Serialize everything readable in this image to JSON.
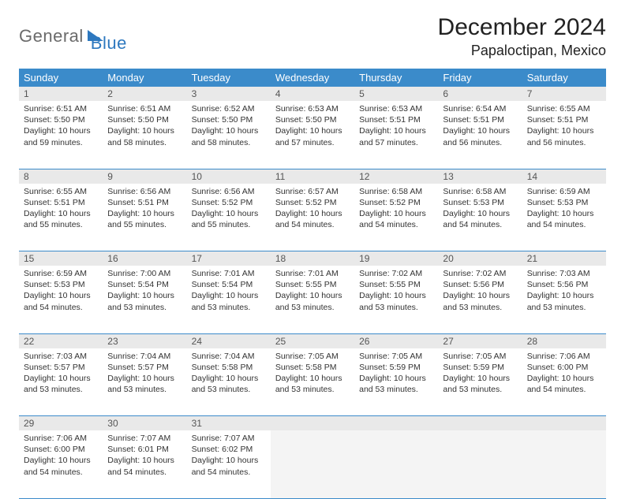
{
  "logo": {
    "part1": "General",
    "part2": "Blue"
  },
  "title": "December 2024",
  "location": "Papaloctipan, Mexico",
  "colors": {
    "header_bg": "#3b8bca",
    "header_fg": "#ffffff",
    "daynum_bg": "#e9e9e9",
    "border": "#3b8bca",
    "logo_gray": "#6b6b6b",
    "logo_blue": "#2d78bf"
  },
  "weekdays": [
    "Sunday",
    "Monday",
    "Tuesday",
    "Wednesday",
    "Thursday",
    "Friday",
    "Saturday"
  ],
  "weeks": [
    [
      {
        "n": "1",
        "sr": "6:51 AM",
        "ss": "5:50 PM",
        "dl": "10 hours and 59 minutes."
      },
      {
        "n": "2",
        "sr": "6:51 AM",
        "ss": "5:50 PM",
        "dl": "10 hours and 58 minutes."
      },
      {
        "n": "3",
        "sr": "6:52 AM",
        "ss": "5:50 PM",
        "dl": "10 hours and 58 minutes."
      },
      {
        "n": "4",
        "sr": "6:53 AM",
        "ss": "5:50 PM",
        "dl": "10 hours and 57 minutes."
      },
      {
        "n": "5",
        "sr": "6:53 AM",
        "ss": "5:51 PM",
        "dl": "10 hours and 57 minutes."
      },
      {
        "n": "6",
        "sr": "6:54 AM",
        "ss": "5:51 PM",
        "dl": "10 hours and 56 minutes."
      },
      {
        "n": "7",
        "sr": "6:55 AM",
        "ss": "5:51 PM",
        "dl": "10 hours and 56 minutes."
      }
    ],
    [
      {
        "n": "8",
        "sr": "6:55 AM",
        "ss": "5:51 PM",
        "dl": "10 hours and 55 minutes."
      },
      {
        "n": "9",
        "sr": "6:56 AM",
        "ss": "5:51 PM",
        "dl": "10 hours and 55 minutes."
      },
      {
        "n": "10",
        "sr": "6:56 AM",
        "ss": "5:52 PM",
        "dl": "10 hours and 55 minutes."
      },
      {
        "n": "11",
        "sr": "6:57 AM",
        "ss": "5:52 PM",
        "dl": "10 hours and 54 minutes."
      },
      {
        "n": "12",
        "sr": "6:58 AM",
        "ss": "5:52 PM",
        "dl": "10 hours and 54 minutes."
      },
      {
        "n": "13",
        "sr": "6:58 AM",
        "ss": "5:53 PM",
        "dl": "10 hours and 54 minutes."
      },
      {
        "n": "14",
        "sr": "6:59 AM",
        "ss": "5:53 PM",
        "dl": "10 hours and 54 minutes."
      }
    ],
    [
      {
        "n": "15",
        "sr": "6:59 AM",
        "ss": "5:53 PM",
        "dl": "10 hours and 54 minutes."
      },
      {
        "n": "16",
        "sr": "7:00 AM",
        "ss": "5:54 PM",
        "dl": "10 hours and 53 minutes."
      },
      {
        "n": "17",
        "sr": "7:01 AM",
        "ss": "5:54 PM",
        "dl": "10 hours and 53 minutes."
      },
      {
        "n": "18",
        "sr": "7:01 AM",
        "ss": "5:55 PM",
        "dl": "10 hours and 53 minutes."
      },
      {
        "n": "19",
        "sr": "7:02 AM",
        "ss": "5:55 PM",
        "dl": "10 hours and 53 minutes."
      },
      {
        "n": "20",
        "sr": "7:02 AM",
        "ss": "5:56 PM",
        "dl": "10 hours and 53 minutes."
      },
      {
        "n": "21",
        "sr": "7:03 AM",
        "ss": "5:56 PM",
        "dl": "10 hours and 53 minutes."
      }
    ],
    [
      {
        "n": "22",
        "sr": "7:03 AM",
        "ss": "5:57 PM",
        "dl": "10 hours and 53 minutes."
      },
      {
        "n": "23",
        "sr": "7:04 AM",
        "ss": "5:57 PM",
        "dl": "10 hours and 53 minutes."
      },
      {
        "n": "24",
        "sr": "7:04 AM",
        "ss": "5:58 PM",
        "dl": "10 hours and 53 minutes."
      },
      {
        "n": "25",
        "sr": "7:05 AM",
        "ss": "5:58 PM",
        "dl": "10 hours and 53 minutes."
      },
      {
        "n": "26",
        "sr": "7:05 AM",
        "ss": "5:59 PM",
        "dl": "10 hours and 53 minutes."
      },
      {
        "n": "27",
        "sr": "7:05 AM",
        "ss": "5:59 PM",
        "dl": "10 hours and 53 minutes."
      },
      {
        "n": "28",
        "sr": "7:06 AM",
        "ss": "6:00 PM",
        "dl": "10 hours and 54 minutes."
      }
    ],
    [
      {
        "n": "29",
        "sr": "7:06 AM",
        "ss": "6:00 PM",
        "dl": "10 hours and 54 minutes."
      },
      {
        "n": "30",
        "sr": "7:07 AM",
        "ss": "6:01 PM",
        "dl": "10 hours and 54 minutes."
      },
      {
        "n": "31",
        "sr": "7:07 AM",
        "ss": "6:02 PM",
        "dl": "10 hours and 54 minutes."
      },
      null,
      null,
      null,
      null
    ]
  ],
  "labels": {
    "sunrise": "Sunrise:",
    "sunset": "Sunset:",
    "daylight": "Daylight:"
  }
}
